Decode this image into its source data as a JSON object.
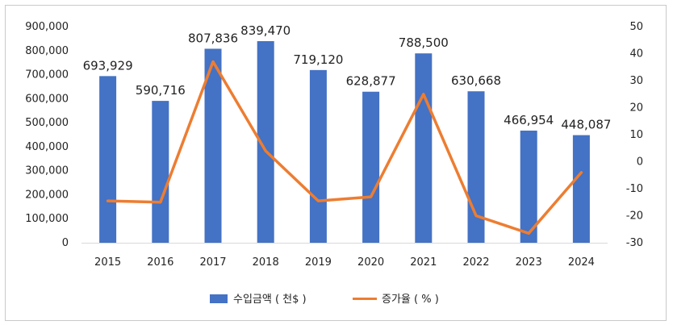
{
  "chart_data": {
    "type": "bar+line",
    "categories": [
      "2015",
      "2016",
      "2017",
      "2018",
      "2019",
      "2020",
      "2021",
      "2022",
      "2023",
      "2024"
    ],
    "series": [
      {
        "name": "수입금액 ( 천$ )",
        "type": "bar",
        "axis": "left",
        "values": [
          693929,
          590716,
          807836,
          839470,
          719120,
          628877,
          788500,
          630668,
          466954,
          448087
        ],
        "labels": [
          "693,929",
          "590,716",
          "807,836",
          "839,470",
          "719,120",
          "628,877",
          "788,500",
          "630,668",
          "466,954",
          "448,087"
        ],
        "color": "#4472c4"
      },
      {
        "name": "증가율 ( % )",
        "type": "line",
        "axis": "right",
        "values": [
          -14.5,
          -15,
          37,
          4,
          -14.5,
          -13,
          25,
          -20,
          -26.5,
          -4
        ],
        "color": "#ed7d31"
      }
    ],
    "y_left": {
      "lim": [
        0,
        900000
      ],
      "ticks": [
        "0",
        "100,000",
        "200,000",
        "300,000",
        "400,000",
        "500,000",
        "600,000",
        "700,000",
        "800,000",
        "900,000"
      ]
    },
    "y_right": {
      "lim": [
        -30,
        50
      ],
      "ticks": [
        "-30",
        "-20",
        "-10",
        "0",
        "10",
        "20",
        "30",
        "40",
        "50"
      ]
    },
    "grid": false,
    "legend": "bottom-center"
  }
}
